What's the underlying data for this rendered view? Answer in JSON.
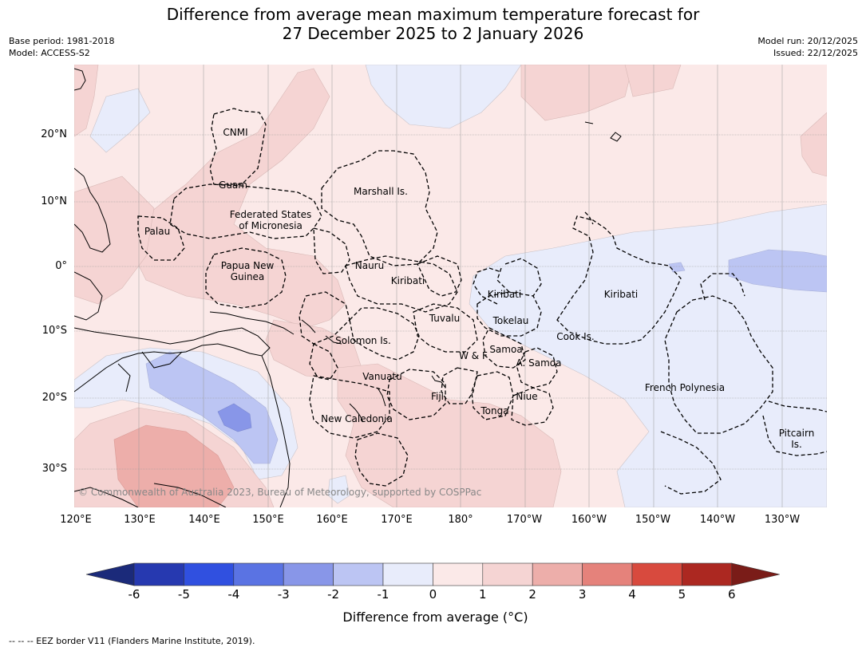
{
  "title": {
    "line1": "Difference from average mean maximum temperature forecast for",
    "line2": "27 December 2025 to 2 January 2026"
  },
  "meta": {
    "base_period": "Base period: 1981-2018",
    "model": "Model: ACCESS-S2",
    "model_run": "Model run: 20/12/2025",
    "issued": "Issued: 22/12/2025"
  },
  "axes": {
    "lat_labels": [
      "20°N",
      "10°N",
      "0°",
      "10°S",
      "20°S",
      "30°S"
    ],
    "lon_labels": [
      "120°E",
      "130°E",
      "140°E",
      "150°E",
      "160°E",
      "170°E",
      "180°",
      "170°W",
      "160°W",
      "150°W",
      "140°W",
      "130°W"
    ]
  },
  "places": {
    "cnmi": "CNMI",
    "guam": "Guam",
    "marshall": "Marshall Is.",
    "fsm_1": "Federated States",
    "fsm_2": "of Micronesia",
    "palau": "Palau",
    "png_1": "Papua New",
    "png_2": "Guinea",
    "nauru": "Nauru",
    "kiribati_w": "Kiribati",
    "kiribati_c": "Kiribati",
    "kiribati_e": "Kiribati",
    "tuvalu": "Tuvalu",
    "tokelau": "Tokelau",
    "cook": "Cook Is.",
    "solomon": "Solomon Is.",
    "samoa": "Samoa",
    "wf": "W & F",
    "asamoa": "A. Samoa",
    "vanuatu": "Vanuatu",
    "fiji": "Fiji",
    "niue": "Niue",
    "tonga": "Tonga",
    "french_polynesia": "French Polynesia",
    "new_caledonia": "New Caledonia",
    "pitcairn_1": "Pitcairn",
    "pitcairn_2": "Is."
  },
  "copyright": "© Commonwealth of Australia 2023, Bureau of Meteorology, supported by COSPPac",
  "colorbar": {
    "ticks": [
      "-6",
      "-5",
      "-4",
      "-3",
      "-2",
      "-1",
      "0",
      "1",
      "2",
      "3",
      "4",
      "5",
      "6"
    ],
    "colors": [
      "#1b2a7a",
      "#2639b0",
      "#3050e0",
      "#5a73e3",
      "#8896e8",
      "#bcc5f3",
      "#e8ecfb",
      "#fbe9e8",
      "#f5d4d3",
      "#edaeaa",
      "#e5827b",
      "#d84a3e",
      "#ac2821",
      "#7a1c18"
    ],
    "label": "Difference from average (°C)"
  },
  "footnote": "--  --  -- EEZ border V11 (Flanders Marine Institute, 2019)."
}
